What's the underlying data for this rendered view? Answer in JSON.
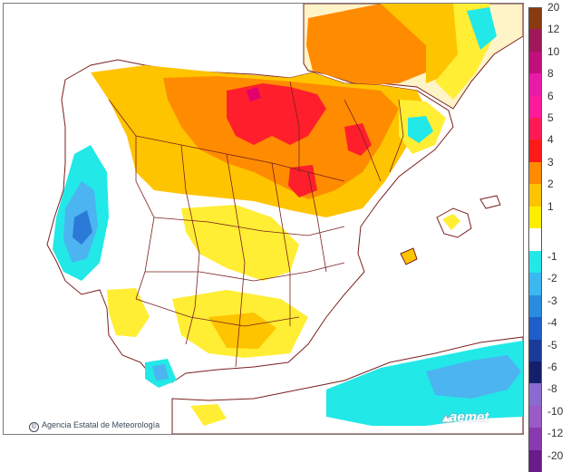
{
  "map": {
    "credit": "Agencia Estatal de Meteorología",
    "logo": "aemet",
    "colors": {
      "sea": "#ffffff",
      "border": "#7a1f1f",
      "cyan": "#22e8e8",
      "lightblue": "#4cb4f0",
      "blue": "#2c7ad8",
      "yellow": "#ffee33",
      "gold": "#ffc400",
      "orange": "#ff8c00",
      "red": "#ff1f2c",
      "magenta": "#e0006e",
      "france": "#fff3c8",
      "africa_bg": "#ffffff"
    }
  },
  "legend": {
    "positive": [
      {
        "label": "20",
        "color": "#8a3a10"
      },
      {
        "label": "12",
        "color": "#a0175a"
      },
      {
        "label": "10",
        "color": "#c0107a"
      },
      {
        "label": "8",
        "color": "#ea1aa8"
      },
      {
        "label": "6",
        "color": "#ff1a9a"
      },
      {
        "label": "5",
        "color": "#ff1a55"
      },
      {
        "label": "4",
        "color": "#ff1a1a"
      },
      {
        "label": "3",
        "color": "#ff8a00"
      },
      {
        "label": "2",
        "color": "#ffc400"
      },
      {
        "label": "1",
        "color": "#ffee00"
      }
    ],
    "negative": [
      {
        "label": "-1",
        "color": "#22e8e8"
      },
      {
        "label": "-2",
        "color": "#3cb8f0"
      },
      {
        "label": "-3",
        "color": "#2a8ce0"
      },
      {
        "label": "-4",
        "color": "#1e5ec8"
      },
      {
        "label": "-5",
        "color": "#1a3c98"
      },
      {
        "label": "-6",
        "color": "#14206a"
      },
      {
        "label": "-8",
        "color": "#8a6ad0"
      },
      {
        "label": "-10",
        "color": "#9a5ac8"
      },
      {
        "label": "-12",
        "color": "#8a3ab0"
      },
      {
        "label": "-20",
        "color": "#6a1a8a"
      }
    ]
  }
}
